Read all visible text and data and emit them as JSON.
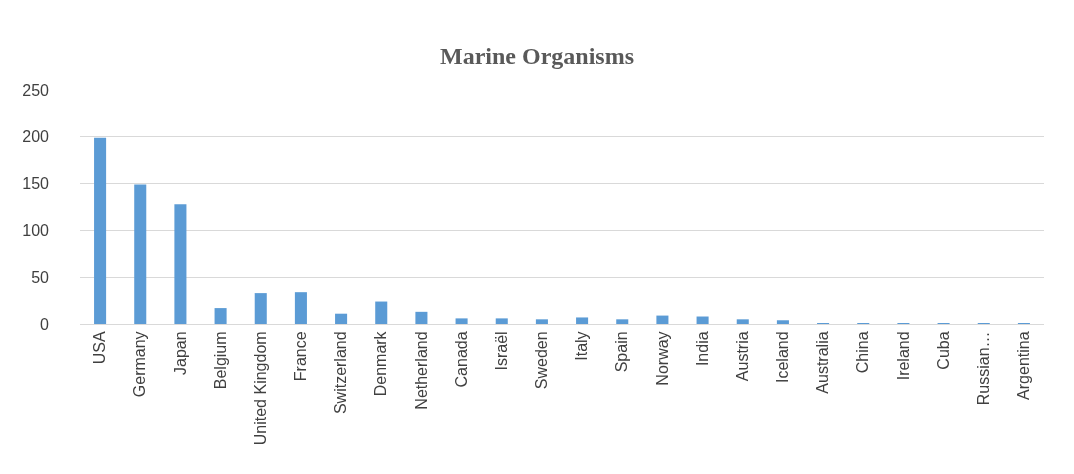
{
  "chart_data": {
    "type": "bar",
    "title": "Marine Organisms",
    "categories": [
      "USA",
      "Germany",
      "Japan",
      "Belgium",
      "United Kingdom",
      "France",
      "Switzerland",
      "Denmark",
      "Netherland",
      "Canada",
      "Israël",
      "Sweden",
      "Italy",
      "Spain",
      "Norway",
      "India",
      "Austria",
      "Iceland",
      "Australia",
      "China",
      "Ireland",
      "Cuba",
      "Russian…",
      "Argentina"
    ],
    "values": [
      199,
      149,
      128,
      17,
      33,
      34,
      11,
      24,
      13,
      6,
      6,
      5,
      7,
      5,
      9,
      8,
      5,
      4,
      1,
      1,
      1,
      1,
      1,
      1
    ],
    "color": "#5b9bd5",
    "ylim": [
      0,
      250
    ],
    "yticks": [
      0,
      50,
      100,
      150,
      200,
      250
    ],
    "grid": "y"
  }
}
